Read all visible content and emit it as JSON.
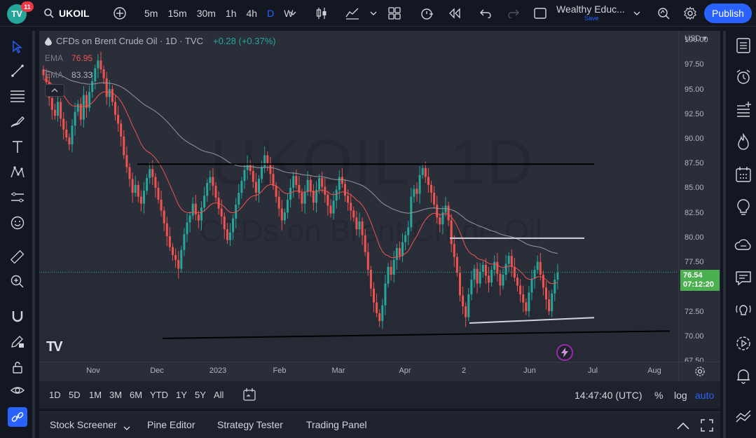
{
  "header": {
    "notification_count": "11",
    "symbol": "UKOIL",
    "intervals": [
      "5m",
      "15m",
      "30m",
      "1h",
      "4h",
      "D",
      "W"
    ],
    "active_interval": "D",
    "layout_name": "Wealthy Educ...",
    "layout_save": "Save",
    "publish_label": "Publish"
  },
  "legend": {
    "title": "CFDs on Brent Crude Oil · 1D · TVC",
    "change": "+0.28 (+0.37%)",
    "ema1_label": "EMA",
    "ema1_value": "76.95",
    "ema2_label": "EMA",
    "ema2_value": "83.33"
  },
  "watermark": {
    "line1": "UKOIL, 1D",
    "line2": "CFDs on Brent Crude Oil"
  },
  "price_axis": {
    "currency": "USD",
    "labels": [
      "100.00",
      "97.50",
      "95.00",
      "92.50",
      "90.00",
      "87.50",
      "85.00",
      "82.50",
      "80.00",
      "77.50",
      "72.50",
      "70.00",
      "67.50"
    ],
    "current_price": "76.54",
    "countdown": "07:12:20"
  },
  "time_axis": {
    "labels": [
      "Nov",
      "Dec",
      "2023",
      "Feb",
      "Mar",
      "Apr",
      "2",
      "Jun",
      "Jul",
      "Aug"
    ]
  },
  "range_bar": {
    "ranges": [
      "1D",
      "5D",
      "1M",
      "3M",
      "6M",
      "YTD",
      "1Y",
      "5Y",
      "All"
    ],
    "clock": "14:47:40 (UTC)",
    "percent": "%",
    "log": "log",
    "auto": "auto"
  },
  "bottom_tabs": [
    "Stock Screener",
    "Pine Editor",
    "Strategy Tester",
    "Trading Panel"
  ],
  "colors": {
    "up": "#26a69a",
    "down": "#ef5350",
    "accent": "#2962ff",
    "ema_fast": "#ef5350",
    "ema_slow": "#9598a1"
  },
  "chart_data": {
    "type": "candlestick",
    "symbol": "UKOIL",
    "interval": "1D",
    "ylim": [
      67.5,
      101
    ],
    "y_ticks": [
      100,
      97.5,
      95,
      92.5,
      90,
      87.5,
      85,
      82.5,
      80,
      77.5,
      72.5,
      70,
      67.5
    ],
    "closes": [
      96.5,
      95.8,
      94.2,
      93.0,
      92.4,
      93.8,
      92.1,
      91.0,
      90.2,
      89.5,
      91.4,
      92.8,
      93.6,
      92.0,
      94.5,
      93.2,
      94.8,
      95.9,
      97.2,
      98.0,
      97.1,
      96.2,
      94.3,
      95.1,
      93.8,
      92.5,
      91.6,
      90.3,
      88.4,
      87.2,
      86.0,
      84.6,
      85.4,
      84.2,
      83.5,
      84.8,
      86.1,
      87.0,
      86.2,
      85.1,
      83.9,
      82.8,
      81.5,
      80.2,
      79.1,
      78.3,
      77.8,
      76.9,
      78.8,
      80.4,
      81.6,
      82.3,
      83.5,
      82.4,
      81.8,
      83.1,
      84.3,
      85.6,
      86.2,
      85.3,
      84.1,
      83.0,
      82.2,
      80.9,
      79.8,
      80.6,
      82.0,
      83.4,
      84.6,
      85.8,
      86.9,
      87.5,
      86.8,
      85.7,
      84.6,
      86.0,
      87.2,
      88.4,
      87.6,
      86.5,
      85.3,
      84.2,
      83.0,
      81.8,
      82.6,
      83.9,
      85.1,
      86.3,
      85.4,
      84.6,
      83.5,
      84.7,
      85.9,
      84.8,
      83.6,
      84.9,
      86.1,
      85.2,
      84.4,
      83.3,
      82.5,
      83.8,
      84.9,
      86.2,
      85.5,
      84.3,
      83.6,
      82.8,
      82.1,
      80.9,
      81.7,
      80.3,
      78.6,
      76.8,
      74.9,
      73.5,
      72.4,
      71.6,
      73.2,
      75.4,
      77.1,
      76.3,
      77.8,
      79.0,
      78.2,
      79.6,
      80.3,
      81.1,
      84.2,
      85.0,
      84.5,
      86.4,
      87.1,
      86.2,
      85.4,
      84.6,
      83.4,
      82.1,
      81.4,
      82.6,
      83.3,
      81.8,
      79.4,
      78.1,
      76.5,
      74.2,
      73.1,
      72.0,
      74.3,
      75.8,
      76.9,
      75.4,
      76.6,
      77.3,
      76.2,
      75.5,
      76.8,
      77.6,
      76.4,
      75.2,
      76.3,
      77.4,
      78.2,
      77.1,
      76.0,
      75.2,
      74.3,
      73.5,
      72.6,
      74.5,
      75.9,
      76.8,
      77.6,
      76.3,
      75.0,
      73.8,
      72.6,
      74.4,
      75.8,
      76.5
    ],
    "overlays": [
      {
        "name": "EMA",
        "value": 76.95,
        "color": "#ef5350"
      },
      {
        "name": "EMA",
        "value": 83.33,
        "color": "#9598a1"
      }
    ],
    "horizontal_lines": [
      87.5,
      80.0
    ],
    "trend_lines": 2,
    "last_price": 76.54,
    "grid": false
  }
}
